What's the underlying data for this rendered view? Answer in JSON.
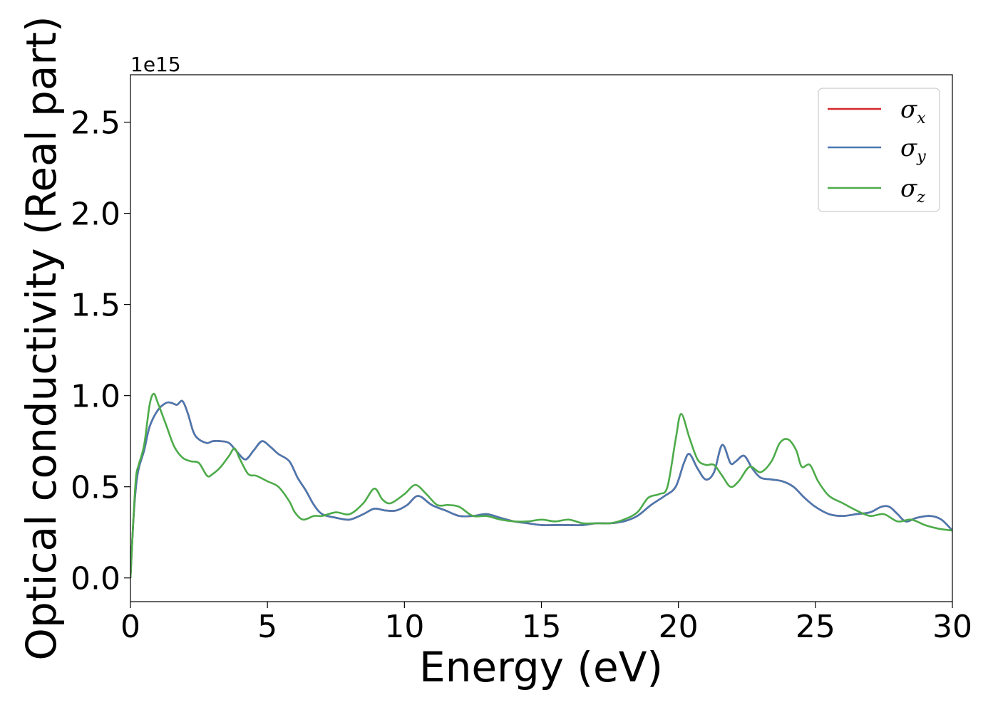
{
  "chart_data": {
    "type": "line",
    "xlabel": "Energy (eV)",
    "ylabel": "Optical conductivity (Real part)",
    "y_offset_text": "1e15",
    "xlim": [
      0,
      30
    ],
    "ylim": [
      -0.13,
      2.76
    ],
    "x_ticks": [
      0,
      5,
      10,
      15,
      20,
      25,
      30
    ],
    "x_tick_labels": [
      "0",
      "5",
      "10",
      "15",
      "20",
      "25",
      "30"
    ],
    "y_ticks": [
      0.0,
      0.5,
      1.0,
      1.5,
      2.0,
      2.5
    ],
    "y_tick_labels": [
      "0.0",
      "0.5",
      "1.0",
      "1.5",
      "2.0",
      "2.5"
    ],
    "grid": false,
    "legend_position": "top-right",
    "series": [
      {
        "name": "σ",
        "subscript": "x",
        "color": "#d62728",
        "x": [
          0,
          0.1,
          0.2,
          0.3,
          0.5,
          0.7,
          1.0,
          1.3,
          1.5,
          1.7,
          1.9,
          2.1,
          2.3,
          2.5,
          2.8,
          3.0,
          3.3,
          3.6,
          3.9,
          4.2,
          4.5,
          4.8,
          5.1,
          5.4,
          5.8,
          6.1,
          6.4,
          6.7,
          7.0,
          7.5,
          8.0,
          8.5,
          8.9,
          9.3,
          9.7,
          10.1,
          10.5,
          11.0,
          11.5,
          12.0,
          12.5,
          13.0,
          13.5,
          14.0,
          14.5,
          15.0,
          15.5,
          16.0,
          16.5,
          17.0,
          17.5,
          18.0,
          18.5,
          19.0,
          19.5,
          19.9,
          20.2,
          20.4,
          20.7,
          21.0,
          21.3,
          21.6,
          21.9,
          22.1,
          22.4,
          22.7,
          23.0,
          23.4,
          23.8,
          24.2,
          24.6,
          25.0,
          25.5,
          26.0,
          26.5,
          27.0,
          27.4,
          27.7,
          28.0,
          28.3,
          28.7,
          29.2,
          29.6,
          30.0
        ],
        "values": [
          0.0,
          0.3,
          0.5,
          0.6,
          0.7,
          0.83,
          0.92,
          0.96,
          0.96,
          0.95,
          0.97,
          0.9,
          0.8,
          0.76,
          0.74,
          0.75,
          0.75,
          0.74,
          0.69,
          0.65,
          0.7,
          0.75,
          0.72,
          0.68,
          0.64,
          0.55,
          0.48,
          0.4,
          0.35,
          0.33,
          0.32,
          0.35,
          0.38,
          0.37,
          0.37,
          0.4,
          0.45,
          0.4,
          0.37,
          0.34,
          0.34,
          0.35,
          0.33,
          0.31,
          0.3,
          0.29,
          0.29,
          0.29,
          0.29,
          0.3,
          0.3,
          0.31,
          0.34,
          0.4,
          0.45,
          0.5,
          0.63,
          0.68,
          0.6,
          0.54,
          0.58,
          0.73,
          0.63,
          0.64,
          0.67,
          0.6,
          0.55,
          0.54,
          0.53,
          0.5,
          0.44,
          0.39,
          0.35,
          0.34,
          0.35,
          0.36,
          0.39,
          0.39,
          0.35,
          0.31,
          0.33,
          0.34,
          0.32,
          0.26
        ]
      },
      {
        "name": "σ",
        "subscript": "y",
        "color": "#4a78b0",
        "x": [
          0,
          0.1,
          0.2,
          0.3,
          0.5,
          0.7,
          1.0,
          1.3,
          1.5,
          1.7,
          1.9,
          2.1,
          2.3,
          2.5,
          2.8,
          3.0,
          3.3,
          3.6,
          3.9,
          4.2,
          4.5,
          4.8,
          5.1,
          5.4,
          5.8,
          6.1,
          6.4,
          6.7,
          7.0,
          7.5,
          8.0,
          8.5,
          8.9,
          9.3,
          9.7,
          10.1,
          10.5,
          11.0,
          11.5,
          12.0,
          12.5,
          13.0,
          13.5,
          14.0,
          14.5,
          15.0,
          15.5,
          16.0,
          16.5,
          17.0,
          17.5,
          18.0,
          18.5,
          19.0,
          19.5,
          19.9,
          20.2,
          20.4,
          20.7,
          21.0,
          21.3,
          21.6,
          21.9,
          22.1,
          22.4,
          22.7,
          23.0,
          23.4,
          23.8,
          24.2,
          24.6,
          25.0,
          25.5,
          26.0,
          26.5,
          27.0,
          27.4,
          27.7,
          28.0,
          28.3,
          28.7,
          29.2,
          29.6,
          30.0
        ],
        "values": [
          0.0,
          0.3,
          0.5,
          0.6,
          0.7,
          0.83,
          0.92,
          0.96,
          0.96,
          0.95,
          0.97,
          0.9,
          0.8,
          0.76,
          0.74,
          0.75,
          0.75,
          0.74,
          0.69,
          0.65,
          0.7,
          0.75,
          0.72,
          0.68,
          0.64,
          0.55,
          0.48,
          0.4,
          0.35,
          0.33,
          0.32,
          0.35,
          0.38,
          0.37,
          0.37,
          0.4,
          0.45,
          0.4,
          0.37,
          0.34,
          0.34,
          0.35,
          0.33,
          0.31,
          0.3,
          0.29,
          0.29,
          0.29,
          0.29,
          0.3,
          0.3,
          0.31,
          0.34,
          0.4,
          0.45,
          0.5,
          0.63,
          0.68,
          0.6,
          0.54,
          0.58,
          0.73,
          0.63,
          0.64,
          0.67,
          0.6,
          0.55,
          0.54,
          0.53,
          0.5,
          0.44,
          0.39,
          0.35,
          0.34,
          0.35,
          0.36,
          0.39,
          0.39,
          0.35,
          0.31,
          0.33,
          0.34,
          0.32,
          0.26
        ]
      },
      {
        "name": "σ",
        "subscript": "z",
        "color": "#4dab4a",
        "x": [
          0,
          0.1,
          0.2,
          0.3,
          0.5,
          0.7,
          0.85,
          1.0,
          1.3,
          1.6,
          1.9,
          2.2,
          2.5,
          2.8,
          3.0,
          3.3,
          3.6,
          3.8,
          4.0,
          4.3,
          4.6,
          5.0,
          5.4,
          5.8,
          6.0,
          6.3,
          6.7,
          7.0,
          7.5,
          8.0,
          8.5,
          8.9,
          9.2,
          9.5,
          10.0,
          10.4,
          10.8,
          11.2,
          11.6,
          12.0,
          12.5,
          13.0,
          13.5,
          14.0,
          14.5,
          15.0,
          15.5,
          16.0,
          16.5,
          17.0,
          17.5,
          18.0,
          18.5,
          18.9,
          19.3,
          19.6,
          19.9,
          20.1,
          20.4,
          20.7,
          21.0,
          21.3,
          21.6,
          21.9,
          22.2,
          22.6,
          23.0,
          23.4,
          23.7,
          24.0,
          24.3,
          24.5,
          24.8,
          25.1,
          25.5,
          26.0,
          26.5,
          27.0,
          27.5,
          28.0,
          28.5,
          29.0,
          29.5,
          30.0
        ],
        "values": [
          0.0,
          0.3,
          0.55,
          0.62,
          0.73,
          0.95,
          1.01,
          0.96,
          0.84,
          0.72,
          0.66,
          0.64,
          0.63,
          0.56,
          0.57,
          0.61,
          0.67,
          0.71,
          0.65,
          0.57,
          0.56,
          0.53,
          0.5,
          0.42,
          0.36,
          0.32,
          0.34,
          0.34,
          0.36,
          0.35,
          0.41,
          0.49,
          0.43,
          0.41,
          0.46,
          0.51,
          0.46,
          0.4,
          0.4,
          0.39,
          0.34,
          0.34,
          0.32,
          0.31,
          0.31,
          0.32,
          0.31,
          0.32,
          0.3,
          0.3,
          0.3,
          0.32,
          0.36,
          0.44,
          0.46,
          0.5,
          0.76,
          0.9,
          0.77,
          0.65,
          0.62,
          0.62,
          0.56,
          0.5,
          0.53,
          0.61,
          0.58,
          0.64,
          0.74,
          0.76,
          0.7,
          0.61,
          0.62,
          0.53,
          0.45,
          0.41,
          0.37,
          0.34,
          0.35,
          0.31,
          0.32,
          0.29,
          0.27,
          0.26
        ]
      }
    ]
  }
}
